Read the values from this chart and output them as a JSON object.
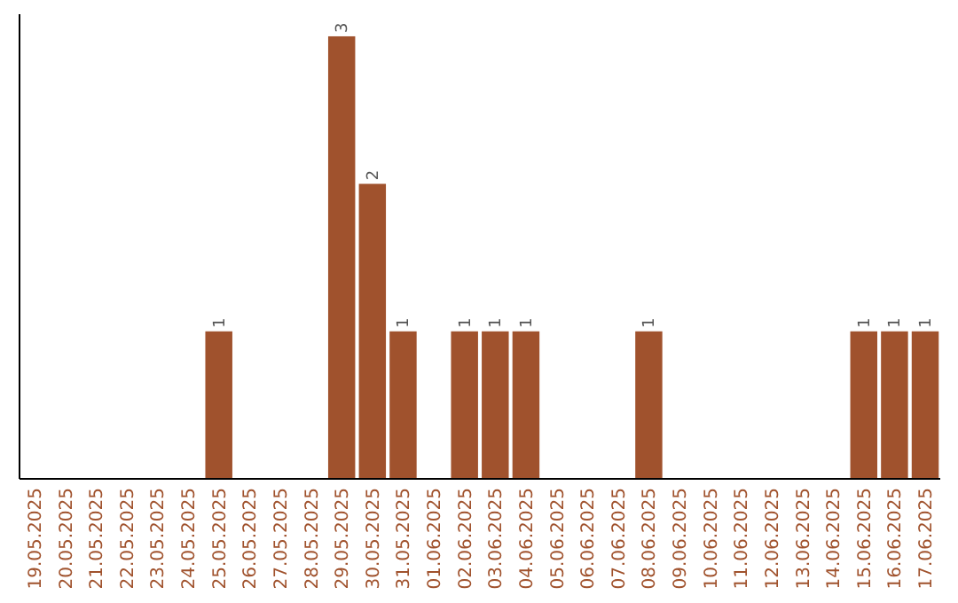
{
  "chart_data": {
    "type": "bar",
    "categories": [
      "19.05.2025",
      "20.05.2025",
      "21.05.2025",
      "22.05.2025",
      "23.05.2025",
      "24.05.2025",
      "25.05.2025",
      "26.05.2025",
      "27.05.2025",
      "28.05.2025",
      "29.05.2025",
      "30.05.2025",
      "31.05.2025",
      "01.06.2025",
      "02.06.2025",
      "03.06.2025",
      "04.06.2025",
      "05.06.2025",
      "06.06.2025",
      "07.06.2025",
      "08.06.2025",
      "09.06.2025",
      "10.06.2025",
      "11.06.2025",
      "12.06.2025",
      "13.06.2025",
      "14.06.2025",
      "15.06.2025",
      "16.06.2025",
      "17.06.2025"
    ],
    "values": [
      0,
      0,
      0,
      0,
      0,
      0,
      1,
      0,
      0,
      0,
      3,
      2,
      1,
      0,
      1,
      1,
      1,
      0,
      0,
      0,
      1,
      0,
      0,
      0,
      0,
      0,
      0,
      1,
      1,
      1
    ],
    "value_labels": [
      null,
      null,
      null,
      null,
      null,
      null,
      "1",
      null,
      null,
      null,
      "3",
      "2",
      "1",
      null,
      "1",
      "1",
      "1",
      null,
      null,
      null,
      "1",
      null,
      null,
      null,
      null,
      null,
      null,
      "1",
      "1",
      "1"
    ],
    "color": "#a0522d"
  }
}
